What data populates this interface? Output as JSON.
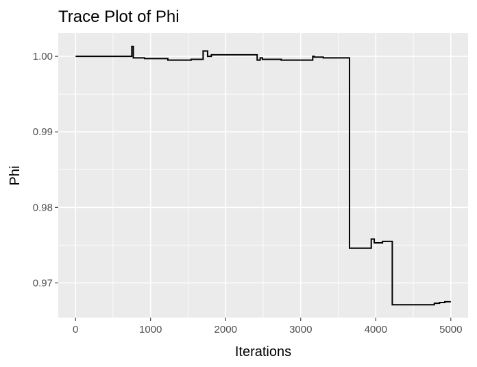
{
  "chart_data": {
    "type": "line",
    "title": "Trace Plot of Phi",
    "xlabel": "Iterations",
    "ylabel": "Phi",
    "xlim": [
      -230,
      5230
    ],
    "ylim": [
      0.9654,
      1.0031
    ],
    "x_ticks": [
      0,
      1000,
      2000,
      3000,
      4000,
      5000
    ],
    "x_tick_labels": [
      "0",
      "1000",
      "2000",
      "3000",
      "4000",
      "5000"
    ],
    "x_minor_ticks": [
      500,
      1500,
      2500,
      3500,
      4500
    ],
    "y_ticks": [
      0.97,
      0.98,
      0.99,
      1.0
    ],
    "y_tick_labels": [
      "0.97",
      "0.98",
      "0.99",
      "1.00"
    ],
    "y_minor_ticks": [
      0.975,
      0.985,
      0.995
    ],
    "grid": true,
    "line_color": "#000000",
    "panel_color": "#ebebeb",
    "series": [
      {
        "step": "after",
        "x": [
          1,
          750,
          770,
          920,
          1230,
          1540,
          1700,
          1760,
          1810,
          2420,
          2460,
          2490,
          2740,
          3160,
          3180,
          3300,
          3650,
          3940,
          3980,
          4090,
          4220,
          4780,
          4850,
          4920,
          5000
        ],
        "y": [
          1.0,
          1.0013,
          0.9998,
          0.9997,
          0.9995,
          0.9996,
          1.0007,
          1.0,
          1.0002,
          0.9995,
          0.9998,
          0.9996,
          0.9995,
          1.0,
          0.9999,
          0.9998,
          0.9746,
          0.9758,
          0.9753,
          0.9755,
          0.9671,
          0.9673,
          0.9674,
          0.9675,
          0.9675
        ]
      }
    ]
  }
}
